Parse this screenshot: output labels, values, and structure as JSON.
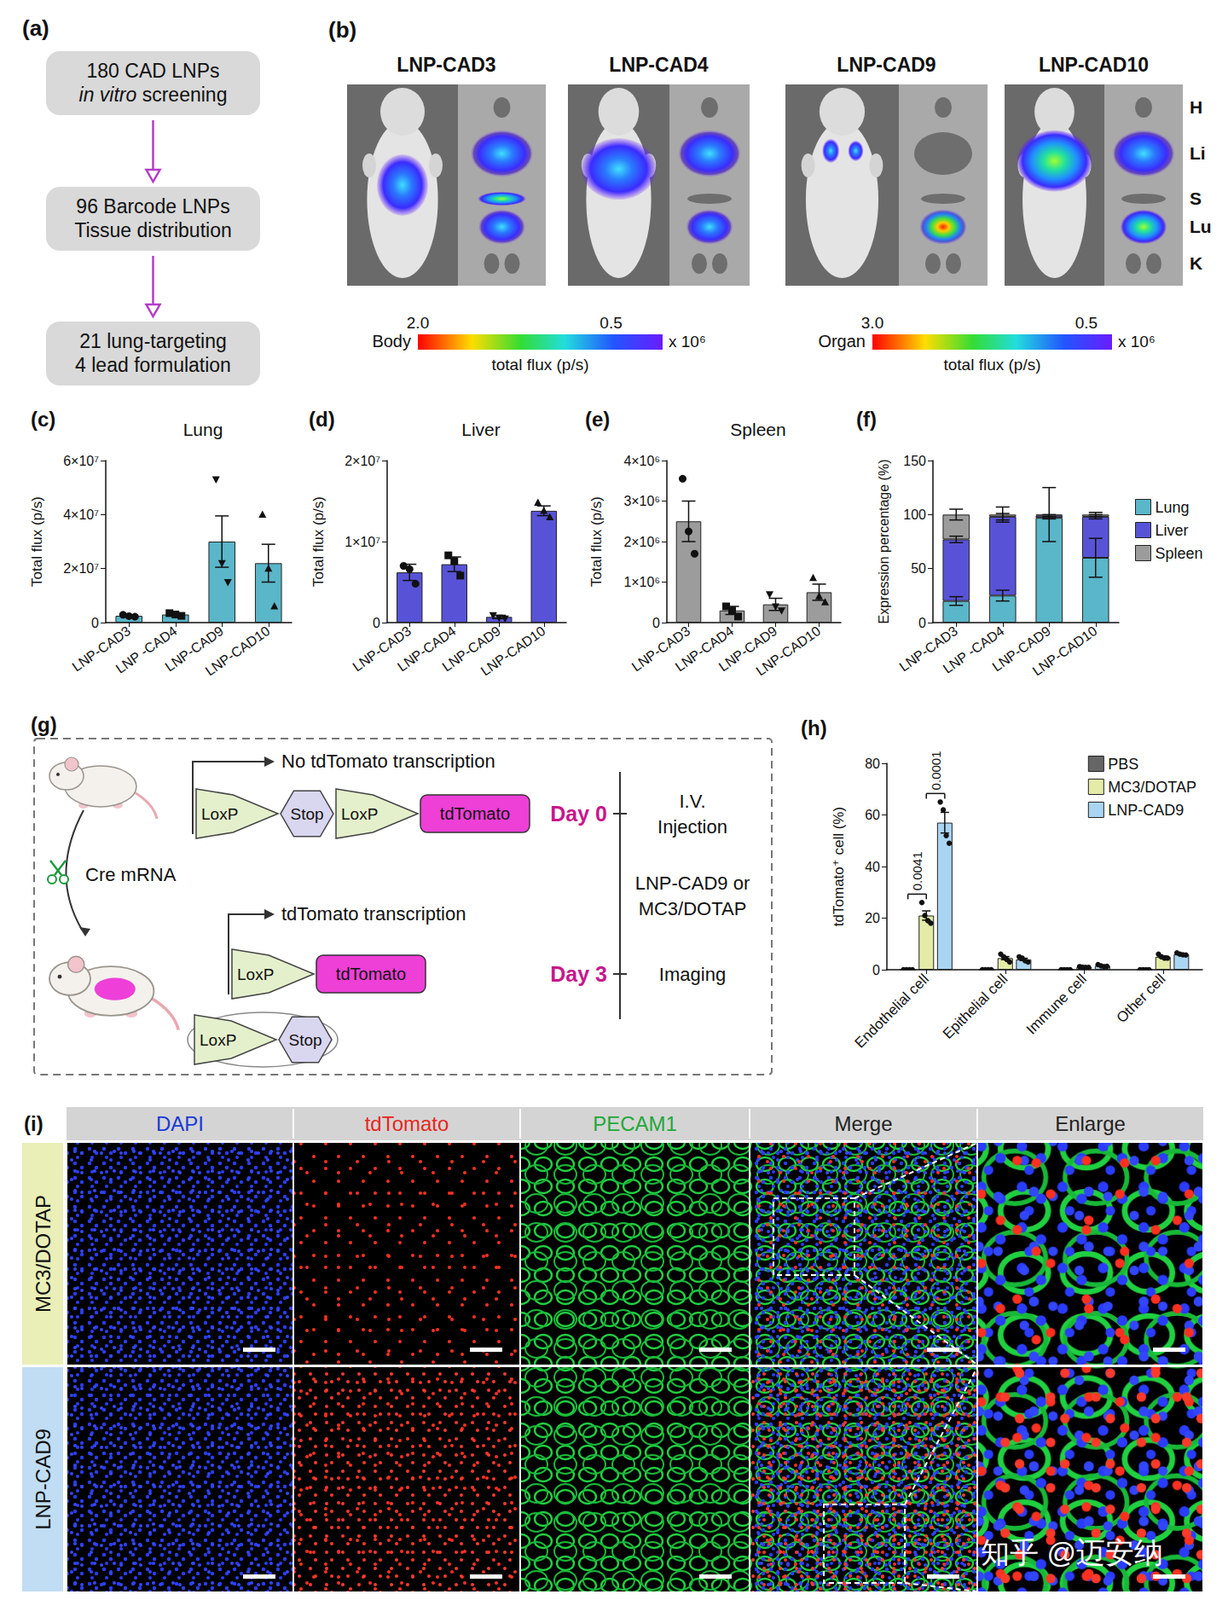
{
  "panels": {
    "a": {
      "label": "(a)",
      "steps": [
        {
          "lines": [
            [
              {
                "text": "180 CAD LNPs"
              }
            ],
            [
              {
                "text": "in vitro",
                "italic": true
              },
              {
                "text": " screening"
              }
            ]
          ]
        },
        {
          "lines": [
            [
              {
                "text": "96 Barcode LNPs"
              }
            ],
            [
              {
                "text": "Tissue distribution"
              }
            ]
          ]
        },
        {
          "lines": [
            [
              {
                "text": "21 lung-targeting"
              }
            ],
            [
              {
                "text": "4 lead formulation"
              }
            ]
          ]
        }
      ]
    },
    "b": {
      "label": "(b)",
      "images": [
        "LNP-CAD3",
        "LNP-CAD4",
        "LNP-CAD9",
        "LNP-CAD10"
      ],
      "organs": [
        "H",
        "Li",
        "S",
        "Lu",
        "K"
      ],
      "colorbars": [
        {
          "name": "Body",
          "range": [
            2.0,
            0.1
          ],
          "ticks": [
            {
              "value": 2,
              "label": "2.0"
            },
            0.5
          ],
          "unit": "x 10⁶",
          "title": "total flux (p/s)"
        },
        {
          "name": "Organ",
          "range": [
            3.0,
            0.2
          ],
          "ticks": [
            {
              "value": 3,
              "label": "3.0"
            },
            0.5
          ],
          "unit": "x 10⁶",
          "title": "total flux (p/s)"
        }
      ]
    },
    "g": {
      "label": "(g)",
      "upper": {
        "arrow_text": "No tdTomato transcription",
        "construct": [
          {
            "text": "LoxP",
            "shape": "loxp"
          },
          {
            "text": "Stop",
            "shape": "hexagon"
          },
          {
            "text": "LoxP",
            "shape": "loxp"
          },
          {
            "text": "tdTomato",
            "shape": "box"
          }
        ]
      },
      "enzyme": "Cre mRNA",
      "lower": {
        "arrow_text": "tdTomato transcription",
        "construct": [
          {
            "text": "LoxP",
            "shape": "loxp"
          },
          {
            "text": "tdTomato",
            "shape": "box"
          }
        ],
        "excised": [
          {
            "text": "LoxP",
            "shape": "loxp"
          },
          {
            "text": "Stop",
            "shape": "hexagon"
          }
        ]
      },
      "timeline": [
        {
          "day": "Day 0",
          "text": [
            "I.V.",
            "Injection"
          ]
        },
        {
          "text": [
            "LNP-CAD9 or",
            "MC3/DOTAP"
          ]
        },
        {
          "day": "Day 3",
          "text": [
            "Imaging"
          ]
        }
      ]
    },
    "i": {
      "label": "(i)",
      "columns": [
        {
          "text": "DAPI",
          "color": "#1a3ad6"
        },
        {
          "text": "tdTomato",
          "color": "#e8261c"
        },
        {
          "text": "PECAM1",
          "color": "#1fa83a"
        },
        {
          "text": "Merge",
          "color": "#222222"
        },
        {
          "text": "Enlarge",
          "color": "#222222"
        }
      ],
      "rows": [
        {
          "text": "MC3/DOTAP",
          "color": "#e9efb6"
        },
        {
          "text": "LNP-CAD9",
          "color": "#c0ddf3"
        }
      ],
      "watermark": "知乎 @迈安纳"
    }
  },
  "chart_data": [
    {
      "type": "bar",
      "label": "(c)",
      "title": "Lung",
      "ylabel": "Total flux (p/s)",
      "categories": [
        "LNP-CAD3",
        "LNP -CAD4",
        "LNP-CAD9",
        "LNP-CAD10"
      ],
      "values": [
        2500000,
        3000000,
        30000000,
        22000000
      ],
      "errors": [
        300000,
        400000,
        9500000,
        7000000
      ],
      "points": [
        [
          2900000,
          2400000,
          2200000
        ],
        [
          3500000,
          3000000,
          2500000
        ],
        [
          53000000,
          22000000,
          15000000
        ],
        [
          40000000,
          20000000,
          6000000
        ]
      ],
      "marker": [
        "circle",
        "square",
        "triangle-down",
        "triangle"
      ],
      "color": "#5ab6c9",
      "ylim": [
        0,
        60000000
      ],
      "yticks": [
        0,
        {
          "value": 20000000,
          "label": "2×10⁷"
        },
        {
          "value": 40000000,
          "label": "4×10⁷"
        },
        {
          "value": 60000000,
          "label": "6×10⁷"
        }
      ],
      "grid": false
    },
    {
      "type": "bar",
      "label": "(d)",
      "title": "Liver",
      "ylabel": "Total flux (p/s)",
      "categories": [
        "LNP-CAD3",
        "LNP-CAD4",
        "LNP-CAD9",
        "LNP-CAD10"
      ],
      "values": [
        6200000,
        7200000,
        700000,
        13800000
      ],
      "errors": [
        1000000,
        900000,
        200000,
        600000
      ],
      "points": [
        [
          7000000,
          6600000,
          4800000
        ],
        [
          8300000,
          7600000,
          5800000
        ],
        [
          900000,
          600000,
          500000
        ],
        [
          14800000,
          13800000,
          13000000
        ]
      ],
      "marker": [
        "circle",
        "square",
        "triangle-down",
        "triangle"
      ],
      "color": "#5853d6",
      "ylim": [
        0,
        20000000
      ],
      "yticks": [
        0,
        {
          "value": 10000000,
          "label": "1×10⁷"
        },
        {
          "value": 20000000,
          "label": "2×10⁷"
        }
      ],
      "grid": false
    },
    {
      "type": "bar",
      "label": "(e)",
      "title": "Spleen",
      "ylabel": "Total flux (p/s)",
      "categories": [
        "LNP-CAD3",
        "LNP-CAD4",
        "LNP-CAD9",
        "LNP-CAD10"
      ],
      "values": [
        2500000,
        300000,
        450000,
        750000
      ],
      "errors": [
        500000,
        100000,
        150000,
        200000
      ],
      "points": [
        [
          3550000,
          2250000,
          1700000
        ],
        [
          400000,
          300000,
          150000
        ],
        [
          700000,
          400000,
          300000
        ],
        [
          1100000,
          650000,
          500000
        ]
      ],
      "marker": [
        "circle",
        "square",
        "triangle-down",
        "triangle"
      ],
      "color": "#9c9c9c",
      "ylim": [
        0,
        4000000
      ],
      "yticks": [
        0,
        {
          "value": 1000000,
          "label": "1×10⁶"
        },
        {
          "value": 2000000,
          "label": "2×10⁶"
        },
        {
          "value": 3000000,
          "label": "3×10⁶"
        },
        {
          "value": 4000000,
          "label": "4×10⁶"
        }
      ],
      "grid": false
    },
    {
      "type": "bar",
      "label": "(f)",
      "ylabel": "Expression percentage (%)",
      "stacked": true,
      "legend": "right",
      "categories": [
        "LNP-CAD3",
        "LNP -CAD4",
        "LNP-CAD9",
        "LNP-CAD10"
      ],
      "series": [
        {
          "name": "Lung",
          "color": "#5ab6c9",
          "values": [
            20,
            25,
            97,
            60
          ],
          "errors": [
            4,
            5,
            1,
            18
          ]
        },
        {
          "name": "Liver",
          "color": "#5853d6",
          "values": [
            57,
            73,
            2,
            38
          ],
          "errors": [
            3,
            3,
            1,
            2
          ]
        },
        {
          "name": "Spleen",
          "color": "#9c9c9c",
          "values": [
            23,
            2,
            1,
            2
          ],
          "errors": [
            5,
            7,
            25,
            2
          ]
        }
      ],
      "ylim": [
        0,
        150
      ],
      "yticks": [
        0,
        50,
        100,
        150
      ],
      "grid": false
    },
    {
      "type": "bar",
      "label": "(h)",
      "ylabel": "tdTomato⁺ cell (%)",
      "legend": "top-right",
      "categories": [
        "Endothelial cell",
        "Epithelial cell",
        "Immune cell",
        "Other cell"
      ],
      "series": [
        {
          "name": "PBS",
          "color": "#666666",
          "marker": "circle",
          "values": [
            0,
            0,
            0,
            0
          ],
          "errors": [
            0,
            0,
            0,
            0
          ],
          "points": [
            [
              0,
              0,
              0,
              0
            ],
            [
              0,
              0,
              0,
              0
            ],
            [
              0,
              0,
              0,
              0
            ],
            [
              0,
              0,
              0,
              0
            ]
          ]
        },
        {
          "name": "MC3/DOTAP",
          "color": "#e3eba6",
          "marker": "circle",
          "values": [
            21,
            4.5,
            1,
            5
          ],
          "errors": [
            1.8,
            0.6,
            0.1,
            0.35
          ],
          "points": [
            [
              26,
              21,
              19,
              18
            ],
            [
              6,
              5,
              4,
              3
            ],
            [
              1.2,
              1,
              0.9,
              0.9
            ],
            [
              6,
              5,
              4.5,
              4.5
            ]
          ]
        },
        {
          "name": "LNP-CAD9",
          "color": "#aad5f2",
          "marker": "circle",
          "values": [
            57,
            4,
            1.5,
            6
          ],
          "errors": [
            4,
            0.45,
            0.2,
            0.2
          ],
          "points": [
            [
              65,
              62,
              52,
              49
            ],
            [
              5,
              4.5,
              3.5,
              3
            ],
            [
              2,
              1.5,
              1.2,
              1.3
            ],
            [
              6.5,
              6,
              5.8,
              5.7
            ]
          ]
        }
      ],
      "annotations": [
        {
          "text": "0.0041",
          "category": "Endothelial cell",
          "from": "PBS",
          "to": "MC3/DOTAP"
        },
        {
          "text": "0.0001",
          "category": "Endothelial cell",
          "from": "MC3/DOTAP",
          "to": "LNP-CAD9"
        }
      ],
      "ylim": [
        0,
        80
      ],
      "yticks": [
        0,
        20,
        40,
        60,
        80
      ],
      "grid": false
    }
  ]
}
